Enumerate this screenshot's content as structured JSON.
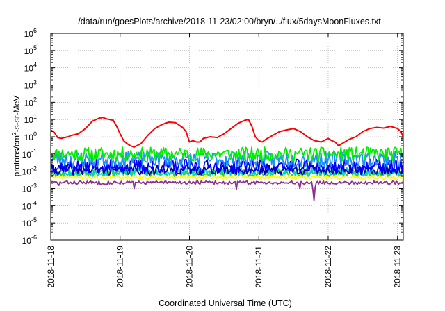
{
  "chart_data": {
    "type": "line",
    "title": "/data/run/goesPlots/archive/2018-11-23/02:00/bryn/../flux/5daysMoonFluxes.txt",
    "xlabel": "Coordinated Universal Time (UTC)",
    "ylabel": "protons/cm²-s-sr-MeV",
    "ylabel_parts": {
      "base": "protons/cm",
      "sup": "2",
      "rest": "-s-sr-MeV"
    },
    "y_scale": "log",
    "ylim": [
      1e-06,
      1000000.0
    ],
    "y_ticks": [
      {
        "exp": -6,
        "label_base": "10",
        "label_exp": "-6"
      },
      {
        "exp": -5,
        "label_base": "10",
        "label_exp": "-5"
      },
      {
        "exp": -4,
        "label_base": "10",
        "label_exp": "-4"
      },
      {
        "exp": -3,
        "label_base": "10",
        "label_exp": "-3"
      },
      {
        "exp": -2,
        "label_base": "10",
        "label_exp": "-2"
      },
      {
        "exp": -1,
        "label_base": "10",
        "label_exp": "-1"
      },
      {
        "exp": 0,
        "label_base": "10",
        "label_exp": "0"
      },
      {
        "exp": 1,
        "label_base": "10",
        "label_exp": "1"
      },
      {
        "exp": 2,
        "label_base": "10",
        "label_exp": "2"
      },
      {
        "exp": 3,
        "label_base": "10",
        "label_exp": "3"
      },
      {
        "exp": 4,
        "label_base": "10",
        "label_exp": "4"
      },
      {
        "exp": 5,
        "label_base": "10",
        "label_exp": "5"
      },
      {
        "exp": 6,
        "label_base": "10",
        "label_exp": "6"
      }
    ],
    "xlim": [
      "2018-11-18",
      "2018-11-23 02:00"
    ],
    "x_ticks": [
      "2018-11-18",
      "2018-11-19",
      "2018-11-20",
      "2018-11-21",
      "2018-11-22",
      "2018-11-23"
    ],
    "x_tick_days": [
      0,
      1,
      2,
      3,
      4,
      5
    ],
    "x_span_days": 5.083,
    "grid": true,
    "legend": "none",
    "series": [
      {
        "color": "#ff0000",
        "x_days": [
          0,
          0.05,
          0.1,
          0.15,
          0.2,
          0.25,
          0.3,
          0.4,
          0.5,
          0.6,
          0.7,
          0.75,
          0.8,
          0.9,
          0.95,
          1.0,
          1.05,
          1.1,
          1.15,
          1.2,
          1.3,
          1.4,
          1.5,
          1.6,
          1.7,
          1.8,
          1.9,
          1.95,
          2.0,
          2.05,
          2.1,
          2.15,
          2.2,
          2.3,
          2.4,
          2.5,
          2.6,
          2.7,
          2.8,
          2.85,
          2.9,
          2.95,
          3.0,
          3.05,
          3.1,
          3.2,
          3.3,
          3.4,
          3.5,
          3.6,
          3.7,
          3.8,
          3.9,
          4.0,
          4.05,
          4.1,
          4.15,
          4.2,
          4.3,
          4.4,
          4.5,
          4.6,
          4.7,
          4.8,
          4.9,
          5.0,
          5.05,
          5.08
        ],
        "values": [
          2.5,
          1.8,
          0.9,
          0.8,
          0.9,
          1.0,
          1.2,
          1.5,
          3.0,
          8.0,
          12.0,
          13.0,
          11.0,
          9.0,
          4.0,
          1.5,
          0.6,
          0.4,
          0.3,
          0.25,
          0.4,
          1.2,
          3.0,
          5.0,
          7.0,
          6.5,
          3.5,
          2.0,
          0.5,
          0.6,
          0.5,
          0.5,
          0.8,
          1.0,
          0.9,
          1.5,
          3.0,
          6.0,
          9.0,
          10.0,
          4.0,
          1.0,
          0.6,
          0.5,
          0.7,
          1.2,
          2.0,
          2.5,
          3.0,
          2.0,
          1.0,
          0.6,
          0.5,
          0.8,
          0.6,
          0.5,
          0.3,
          0.4,
          0.7,
          1.0,
          2.0,
          3.0,
          3.5,
          3.2,
          4.0,
          3.0,
          2.0,
          1.0
        ]
      },
      {
        "color": "#00ee00",
        "base": 0.1,
        "spread": 0.8,
        "seed": 11
      },
      {
        "color": "#1e90ff",
        "base": 0.05,
        "spread": 0.9,
        "seed": 23
      },
      {
        "color": "#0000ff",
        "base": 0.02,
        "spread": 0.8,
        "seed": 37
      },
      {
        "color": "#0000aa",
        "base": 0.012,
        "spread": 0.6,
        "seed": 41
      },
      {
        "color": "#00d0d0",
        "base": 0.009,
        "spread": 0.5,
        "seed": 53
      },
      {
        "color": "#33cc33",
        "base": 0.008,
        "spread": 0.4,
        "seed": 61
      },
      {
        "color": "#ffff00",
        "base": 0.0045,
        "spread": 0.25,
        "seed": 71
      },
      {
        "color": "#8b2f8b",
        "base": 0.0022,
        "spread": 0.2,
        "seed": 83,
        "spikes": [
          [
            0.12,
            0.0015
          ],
          [
            1.2,
            0.001
          ],
          [
            2.68,
            0.0009
          ],
          [
            3.6,
            0.001
          ],
          [
            3.77,
            0.0009
          ],
          [
            3.8,
            0.0002
          ],
          [
            3.82,
            0.0012
          ]
        ]
      }
    ],
    "colors": {
      "axis": "#000000",
      "grid": "#a0a0a0",
      "background": "#ffffff"
    }
  }
}
